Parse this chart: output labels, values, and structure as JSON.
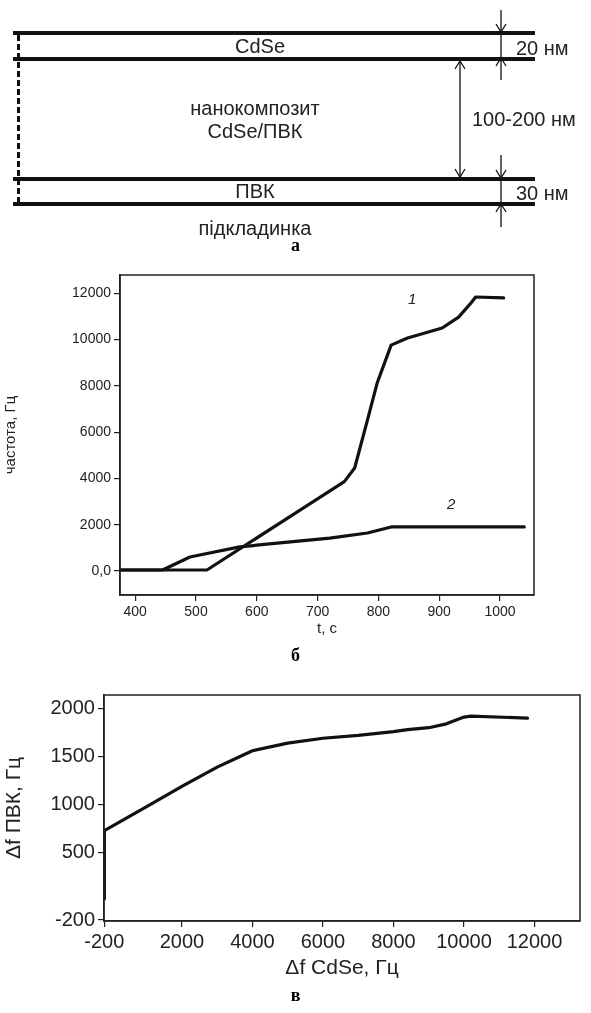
{
  "chart_data": [
    {
      "type": "other",
      "annotations": [
        "CdSe",
        "20 нм",
        "нанокомпозит CdSe/ПВК",
        "100-200 нм",
        "ПВК",
        "30 нм",
        "підкладинка",
        "а"
      ]
    },
    {
      "type": "line",
      "xlabel": "t, с",
      "ylabel": "частота, Гц",
      "xlim": [
        375,
        1056
      ],
      "ylim": [
        -1040,
        12790
      ],
      "xticks": [
        400,
        500,
        600,
        700,
        800,
        900,
        1000
      ],
      "yticks": [
        {
          "value": 0,
          "label": "0,0"
        },
        2000,
        4000,
        6000,
        8000,
        10000,
        12000
      ],
      "grid": false,
      "marker": "none",
      "line_style": "solid",
      "series": [
        {
          "name": "1",
          "color": "#111111",
          "x": [
            375,
            518,
            744,
            761,
            782,
            798,
            821,
            848,
            905,
            932,
            953,
            960,
            1006
          ],
          "values": [
            40,
            40,
            3860,
            4450,
            6520,
            8120,
            9760,
            10070,
            10500,
            10970,
            11600,
            11840,
            11800
          ]
        },
        {
          "name": "2",
          "color": "#111111",
          "x": [
            375,
            445,
            490,
            572,
            638,
            720,
            782,
            821,
            1040
          ],
          "values": [
            40,
            40,
            600,
            1040,
            1210,
            1420,
            1640,
            1900,
            1900
          ]
        }
      ],
      "annotations": [
        "б"
      ]
    },
    {
      "type": "line",
      "xlabel": "Δf CdSe, Гц",
      "ylabel": "Δf ПВК, Гц",
      "xlim": [
        -210,
        13290
      ],
      "ylim": [
        -210,
        2140
      ],
      "xticks": [
        -200,
        2000,
        4000,
        6000,
        8000,
        10000,
        12000
      ],
      "yticks": [
        -200,
        500,
        1000,
        1500,
        2000
      ],
      "grid": false,
      "marker": "none",
      "line_style": "solid",
      "series": [
        {
          "color": "#111111",
          "x": [
            -200,
            -200,
            1000,
            2000,
            3000,
            4000,
            5000,
            6000,
            7000,
            8000,
            8400,
            9000,
            9500,
            10000,
            10200,
            11800
          ],
          "values": [
            20,
            730,
            980,
            1190,
            1390,
            1560,
            1640,
            1690,
            1720,
            1760,
            1780,
            1800,
            1840,
            1910,
            1920,
            1900
          ]
        }
      ],
      "annotations": [
        "в"
      ]
    }
  ]
}
